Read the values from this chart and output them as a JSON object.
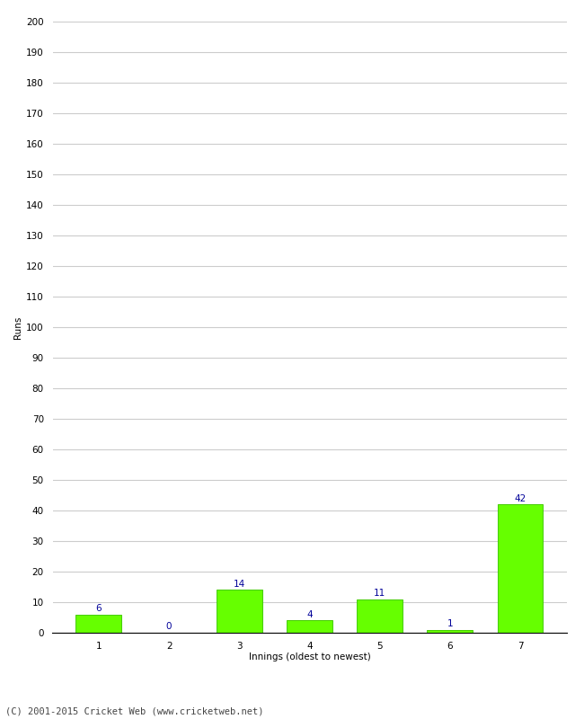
{
  "categories": [
    "1",
    "2",
    "3",
    "4",
    "5",
    "6",
    "7"
  ],
  "values": [
    6,
    0,
    14,
    4,
    11,
    1,
    42
  ],
  "bar_color": "#66ff00",
  "bar_edge_color": "#44cc00",
  "label_color": "#000099",
  "ylabel": "Runs",
  "xlabel": "Innings (oldest to newest)",
  "ylim": [
    0,
    200
  ],
  "yticks": [
    0,
    10,
    20,
    30,
    40,
    50,
    60,
    70,
    80,
    90,
    100,
    110,
    120,
    130,
    140,
    150,
    160,
    170,
    180,
    190,
    200
  ],
  "footer": "(C) 2001-2015 Cricket Web (www.cricketweb.net)",
  "background_color": "#ffffff",
  "grid_color": "#cccccc",
  "label_fontsize": 7.5,
  "axis_fontsize": 7.5,
  "ylabel_fontsize": 7.5,
  "footer_fontsize": 7.5
}
